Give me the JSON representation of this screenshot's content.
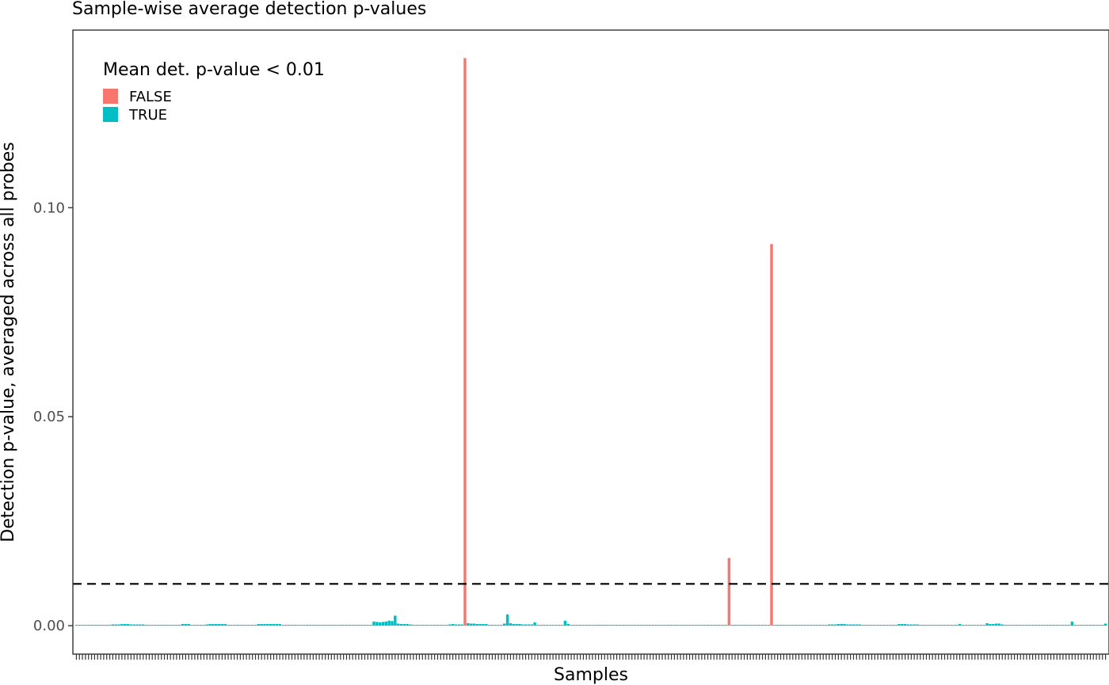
{
  "chart_data": {
    "type": "bar",
    "title": "Sample-wise average detection p-values",
    "xlabel": "Samples",
    "ylabel": "Detection p-value, averaged across all probes",
    "ylim": [
      -0.0068,
      0.1425
    ],
    "y_ticks": [
      0.0,
      0.05,
      0.1
    ],
    "y_tick_labels": [
      "0.00",
      "0.05",
      "0.10"
    ],
    "threshold": 0.01,
    "threshold_style": "dashed",
    "legend_title": "Mean det. p-value < 0.01",
    "legend_position": "top-left",
    "series": [
      {
        "name": "FALSE",
        "color": "#F8766D"
      },
      {
        "name": "TRUE",
        "color": "#00BFC4"
      }
    ],
    "num_samples": 340,
    "values": [
      0.0002,
      0.0002,
      0.0002,
      0.0002,
      0.0002,
      0.0002,
      0.0002,
      0.0002,
      0.0002,
      0.0002,
      0.0002,
      0.0002,
      0.0003,
      0.0003,
      0.0003,
      0.0004,
      0.0004,
      0.0004,
      0.0003,
      0.0003,
      0.0003,
      0.0003,
      0.0003,
      0.0002,
      0.0002,
      0.0002,
      0.0002,
      0.0002,
      0.0002,
      0.0002,
      0.0002,
      0.0002,
      0.0002,
      0.0002,
      0.0002,
      0.0004,
      0.0004,
      0.0004,
      0.0002,
      0.0002,
      0.0002,
      0.0002,
      0.0002,
      0.0003,
      0.0004,
      0.0004,
      0.0004,
      0.0004,
      0.0004,
      0.0004,
      0.0002,
      0.0002,
      0.0002,
      0.0002,
      0.0002,
      0.0002,
      0.0002,
      0.0002,
      0.0002,
      0.0002,
      0.0004,
      0.0004,
      0.0004,
      0.0004,
      0.0004,
      0.0004,
      0.0004,
      0.0004,
      0.0002,
      0.0002,
      0.0002,
      0.0002,
      0.0002,
      0.0002,
      0.0002,
      0.0002,
      0.0002,
      0.0002,
      0.0002,
      0.0002,
      0.0002,
      0.0002,
      0.0002,
      0.0002,
      0.0002,
      0.0002,
      0.0002,
      0.0002,
      0.0002,
      0.0002,
      0.0002,
      0.0002,
      0.0002,
      0.0002,
      0.0002,
      0.0002,
      0.0002,
      0.0002,
      0.001,
      0.0009,
      0.0008,
      0.0009,
      0.001,
      0.0012,
      0.0011,
      0.0024,
      0.0005,
      0.0004,
      0.0004,
      0.0004,
      0.0003,
      0.0002,
      0.0002,
      0.0002,
      0.0002,
      0.0002,
      0.0002,
      0.0002,
      0.0002,
      0.0002,
      0.0002,
      0.0002,
      0.0002,
      0.0003,
      0.0004,
      0.0003,
      0.0003,
      0.0003,
      0.1358,
      0.0006,
      0.0005,
      0.0005,
      0.0004,
      0.0004,
      0.0004,
      0.0004,
      0.0002,
      0.0002,
      0.0002,
      0.0002,
      0.0002,
      0.0005,
      0.0027,
      0.0006,
      0.0004,
      0.0004,
      0.0004,
      0.0003,
      0.0003,
      0.0003,
      0.0003,
      0.0008,
      0.0002,
      0.0002,
      0.0002,
      0.0002,
      0.0002,
      0.0002,
      0.0002,
      0.0002,
      0.0002,
      0.0012,
      0.0004,
      0.0002,
      0.0002,
      0.0002,
      0.0002,
      0.0002,
      0.0002,
      0.0002,
      0.0002,
      0.0002,
      0.0002,
      0.0002,
      0.0002,
      0.0002,
      0.0002,
      0.0002,
      0.0002,
      0.0002,
      0.0002,
      0.0002,
      0.0002,
      0.0002,
      0.0002,
      0.0002,
      0.0002,
      0.0002,
      0.0002,
      0.0002,
      0.0002,
      0.0002,
      0.0002,
      0.0002,
      0.0002,
      0.0002,
      0.0002,
      0.0002,
      0.0002,
      0.0002,
      0.0002,
      0.0002,
      0.0002,
      0.0002,
      0.0002,
      0.0002,
      0.0002,
      0.0002,
      0.0002,
      0.0002,
      0.0002,
      0.0002,
      0.0002,
      0.0002,
      0.0002,
      0.0162,
      0.0002,
      0.0002,
      0.0002,
      0.0002,
      0.0002,
      0.0002,
      0.0002,
      0.0002,
      0.0002,
      0.0002,
      0.0002,
      0.0002,
      0.0002,
      0.0913,
      0.0002,
      0.0002,
      0.0002,
      0.0002,
      0.0002,
      0.0002,
      0.0002,
      0.0002,
      0.0002,
      0.0002,
      0.0002,
      0.0002,
      0.0002,
      0.0002,
      0.0002,
      0.0002,
      0.0002,
      0.0002,
      0.0003,
      0.0003,
      0.0003,
      0.0004,
      0.0004,
      0.0004,
      0.0003,
      0.0003,
      0.0003,
      0.0003,
      0.0003,
      0.0002,
      0.0002,
      0.0002,
      0.0002,
      0.0002,
      0.0002,
      0.0002,
      0.0002,
      0.0002,
      0.0002,
      0.0002,
      0.0002,
      0.0004,
      0.0004,
      0.0004,
      0.0003,
      0.0003,
      0.0003,
      0.0003,
      0.0002,
      0.0002,
      0.0002,
      0.0002,
      0.0002,
      0.0002,
      0.0002,
      0.0002,
      0.0002,
      0.0002,
      0.0002,
      0.0002,
      0.0002,
      0.0004,
      0.0002,
      0.0002,
      0.0002,
      0.0002,
      0.0002,
      0.0002,
      0.0002,
      0.0002,
      0.0006,
      0.0004,
      0.0004,
      0.0005,
      0.0005,
      0.0003,
      0.0002,
      0.0002,
      0.0002,
      0.0002,
      0.0002,
      0.0002,
      0.0002,
      0.0002,
      0.0002,
      0.0002,
      0.0002,
      0.0002,
      0.0002,
      0.0002,
      0.0002,
      0.0002,
      0.0002,
      0.0002,
      0.0002,
      0.0002,
      0.0002,
      0.0002,
      0.001,
      0.0002,
      0.0002,
      0.0002,
      0.0002,
      0.0002,
      0.0002,
      0.0002,
      0.0002,
      0.0002,
      0.0002,
      0.0005
    ]
  }
}
